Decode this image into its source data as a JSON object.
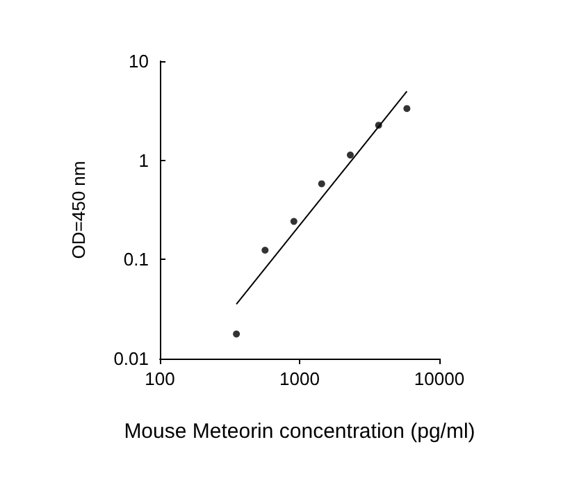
{
  "chart_data": {
    "type": "scatter",
    "xlabel": "Mouse Meteorin concentration (pg/ml)",
    "ylabel": "OD=450 nm",
    "log": "xy",
    "xlim": [
      100,
      10000
    ],
    "ylim": [
      0.01,
      10
    ],
    "xticks": [
      100,
      1000,
      10000
    ],
    "yticks": [
      0.01,
      0.1,
      1,
      10
    ],
    "grid": false,
    "marker": "circle",
    "series": [
      {
        "color": "#000000",
        "x": [
          353,
          566,
          910,
          1438,
          2307,
          3677,
          5860
        ],
        "values": [
          0.0177,
          0.124,
          0.242,
          0.58,
          1.13,
          2.26,
          3.33
        ]
      },
      {
        "type": "line",
        "color": "#000000",
        "x": [
          353,
          5860
        ],
        "values": [
          0.0354,
          4.96
        ],
        "marker": "none",
        "line_style": "solid"
      }
    ]
  }
}
